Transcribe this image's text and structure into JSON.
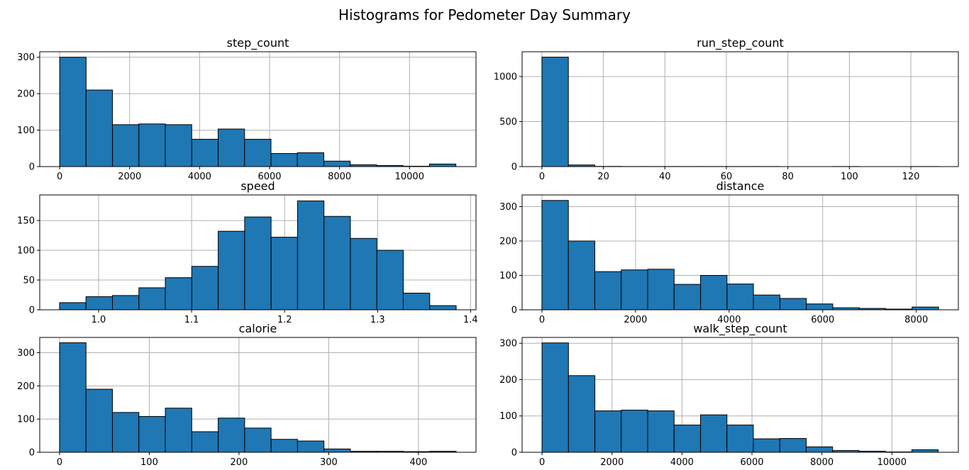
{
  "title": "Histograms for Pedometer Day Summary",
  "style": {
    "bar_color": "#1f77b4",
    "edge_color": "#000000",
    "grid_color": "#b0b0b0"
  },
  "chart_data": [
    {
      "type": "bar",
      "title": "step_count",
      "bin_edges": [
        0,
        755,
        1510,
        2265,
        3020,
        3775,
        4530,
        5285,
        6040,
        6795,
        7550,
        8305,
        9060,
        9815,
        10570,
        11325
      ],
      "values": [
        300,
        210,
        115,
        117,
        115,
        75,
        103,
        75,
        36,
        38,
        15,
        5,
        3,
        1,
        7
      ],
      "xlim": [
        -570,
        11900
      ],
      "ylim": [
        0,
        315
      ],
      "xticks": [
        0,
        2000,
        4000,
        6000,
        8000,
        10000
      ],
      "xtick_labels": [
        "0",
        "2000",
        "4000",
        "6000",
        "8000",
        "10000"
      ],
      "yticks": [
        0,
        100,
        200,
        300
      ],
      "ytick_labels": [
        "0",
        "100",
        "200",
        "300"
      ],
      "grid": true
    },
    {
      "type": "bar",
      "title": "run_step_count",
      "bin_edges": [
        0,
        8.6,
        17.2,
        25.8,
        34.4,
        43,
        51.6,
        60.2,
        68.8,
        77.4,
        86,
        94.6,
        103.2,
        111.8,
        120.4,
        129
      ],
      "values": [
        1215,
        18,
        2,
        1,
        1,
        1,
        1,
        1,
        1,
        0,
        0,
        1,
        0,
        0,
        1
      ],
      "xlim": [
        -6.45,
        135.45
      ],
      "ylim": [
        0,
        1275
      ],
      "xticks": [
        0,
        20,
        40,
        60,
        80,
        100,
        120
      ],
      "xtick_labels": [
        "0",
        "20",
        "40",
        "60",
        "80",
        "100",
        "120"
      ],
      "yticks": [
        0,
        500,
        1000
      ],
      "ytick_labels": [
        "0",
        "500",
        "1000"
      ],
      "grid": true
    },
    {
      "type": "bar",
      "title": "speed",
      "bin_edges": [
        0.958,
        0.98643,
        1.01487,
        1.0433,
        1.07173,
        1.10017,
        1.1286,
        1.15703,
        1.18547,
        1.2139,
        1.24233,
        1.27077,
        1.2992,
        1.32763,
        1.35607,
        1.3845
      ],
      "values": [
        12,
        22,
        24,
        37,
        54,
        73,
        132,
        156,
        122,
        183,
        157,
        120,
        100,
        28,
        7
      ],
      "xlim": [
        0.936675,
        1.405825
      ],
      "ylim": [
        0,
        193
      ],
      "xticks": [
        1.0,
        1.1,
        1.2,
        1.3,
        1.4
      ],
      "xtick_labels": [
        "1.0",
        "1.1",
        "1.2",
        "1.3",
        "1.4"
      ],
      "yticks": [
        0,
        50,
        100,
        150
      ],
      "ytick_labels": [
        "0",
        "50",
        "100",
        "150"
      ],
      "grid": true
    },
    {
      "type": "bar",
      "title": "distance",
      "bin_edges": [
        0,
        565,
        1130,
        1695,
        2260,
        2825,
        3390,
        3955,
        4520,
        5085,
        5650,
        6215,
        6780,
        7345,
        7910,
        8475
      ],
      "values": [
        318,
        200,
        111,
        116,
        118,
        74,
        100,
        75,
        43,
        33,
        17,
        6,
        4,
        2,
        8
      ],
      "xlim": [
        -423.75,
        8898.75
      ],
      "ylim": [
        0,
        334
      ],
      "xticks": [
        0,
        2000,
        4000,
        6000,
        8000
      ],
      "xtick_labels": [
        "0",
        "2000",
        "4000",
        "6000",
        "8000"
      ],
      "yticks": [
        0,
        100,
        200,
        300
      ],
      "ytick_labels": [
        "0",
        "100",
        "200",
        "300"
      ],
      "grid": true
    },
    {
      "type": "bar",
      "title": "calorie",
      "bin_edges": [
        0,
        29.47,
        58.93,
        88.4,
        117.87,
        147.33,
        176.8,
        206.27,
        235.73,
        265.2,
        294.67,
        324.13,
        353.6,
        383.07,
        412.53,
        442
      ],
      "values": [
        330,
        190,
        120,
        108,
        133,
        62,
        103,
        73,
        39,
        34,
        10,
        3,
        3,
        2,
        3
      ],
      "xlim": [
        -22.1,
        464.1
      ],
      "ylim": [
        0,
        346
      ],
      "xticks": [
        0,
        100,
        200,
        300,
        400
      ],
      "xtick_labels": [
        "0",
        "100",
        "200",
        "300",
        "400"
      ],
      "yticks": [
        0,
        100,
        200,
        300
      ],
      "ytick_labels": [
        "0",
        "100",
        "200",
        "300"
      ],
      "grid": true
    },
    {
      "type": "bar",
      "title": "walk_step_count",
      "bin_edges": [
        0,
        755,
        1510,
        2265,
        3020,
        3775,
        4530,
        5285,
        6040,
        6795,
        7550,
        8305,
        9060,
        9815,
        10570,
        11325
      ],
      "values": [
        301,
        211,
        114,
        116,
        114,
        75,
        103,
        75,
        37,
        38,
        15,
        5,
        3,
        1,
        7
      ],
      "xlim": [
        -570,
        11900
      ],
      "ylim": [
        0,
        316
      ],
      "xticks": [
        0,
        2000,
        4000,
        6000,
        8000,
        10000
      ],
      "xtick_labels": [
        "0",
        "2000",
        "4000",
        "6000",
        "8000",
        "10000"
      ],
      "yticks": [
        0,
        100,
        200,
        300
      ],
      "ytick_labels": [
        "0",
        "100",
        "200",
        "300"
      ],
      "grid": true
    }
  ]
}
